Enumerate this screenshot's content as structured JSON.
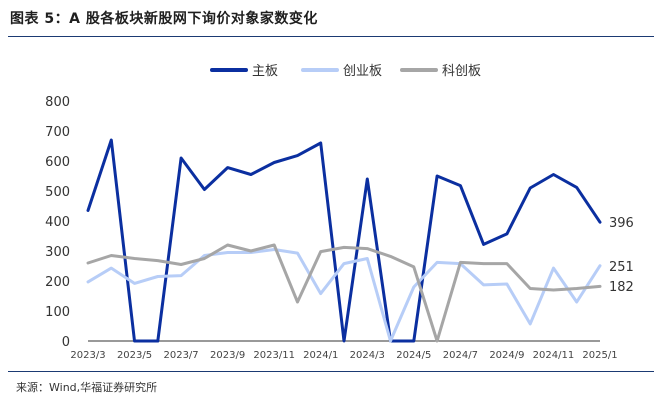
{
  "header": {
    "title": "图表 5：A 股各板块新股网下询价对象家数变化"
  },
  "footer": {
    "source": "来源：Wind,华福证券研究所"
  },
  "chart_data": {
    "type": "line",
    "title": "图表 5：A 股各板块新股网下询价对象家数变化",
    "xlabel": "",
    "ylabel": "",
    "ylim": [
      0,
      800
    ],
    "yticks": [
      0,
      100,
      200,
      300,
      400,
      500,
      600,
      700,
      800
    ],
    "grid": false,
    "legend_position": "top",
    "x": [
      "2023/3",
      "2023/4",
      "2023/5",
      "2023/6",
      "2023/7",
      "2023/8",
      "2023/9",
      "2023/10",
      "2023/11",
      "2023/12",
      "2024/1",
      "2024/2",
      "2024/3",
      "2024/4",
      "2024/5",
      "2024/6",
      "2024/7",
      "2024/8",
      "2024/9",
      "2024/10",
      "2024/11",
      "2024/12",
      "2025/1"
    ],
    "xtick_labels": [
      "2023/3",
      "2023/5",
      "2023/7",
      "2023/9",
      "2023/11",
      "2024/1",
      "2024/3",
      "2024/5",
      "2024/7",
      "2024/9",
      "2024/11",
      "2025/1"
    ],
    "series": [
      {
        "name": "主板",
        "color": "#0b2fa0",
        "width": 3,
        "values": [
          435,
          670,
          0,
          0,
          610,
          505,
          578,
          555,
          595,
          618,
          660,
          0,
          540,
          0,
          0,
          550,
          518,
          322,
          357,
          510,
          555,
          512,
          396
        ]
      },
      {
        "name": "创业板",
        "color": "#b7cdf7",
        "width": 3,
        "values": [
          197,
          243,
          192,
          215,
          218,
          285,
          295,
          295,
          305,
          293,
          158,
          258,
          275,
          0,
          180,
          262,
          258,
          187,
          190,
          57,
          243,
          130,
          251
        ]
      },
      {
        "name": "科创板",
        "color": "#a6a6a6",
        "width": 3,
        "values": [
          260,
          285,
          275,
          268,
          255,
          275,
          320,
          300,
          320,
          130,
          298,
          312,
          308,
          282,
          247,
          0,
          262,
          258,
          258,
          175,
          170,
          175,
          182
        ]
      }
    ],
    "end_labels": [
      "396",
      "251",
      "182"
    ]
  }
}
